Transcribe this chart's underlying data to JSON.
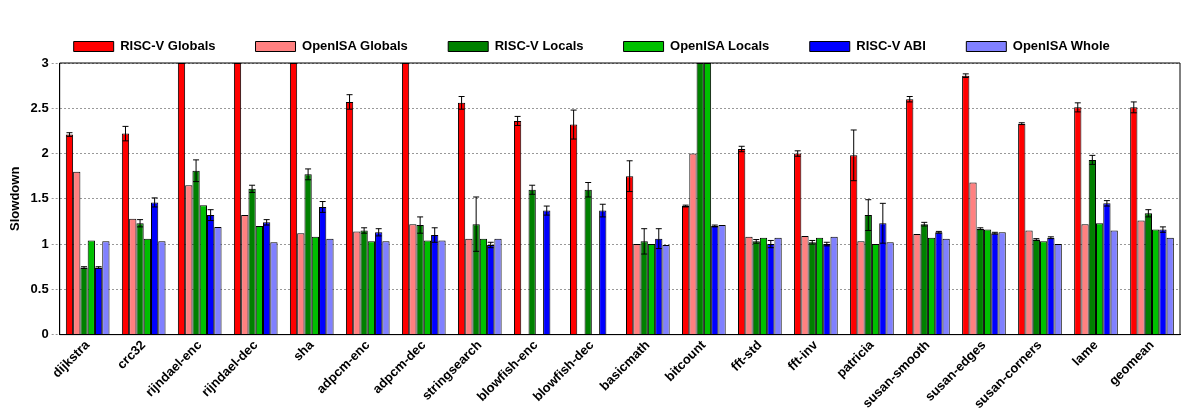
{
  "chart_data": {
    "type": "bar",
    "ylabel": "Slowdown",
    "categories": [
      "dijkstra",
      "crc32",
      "rijndael-enc",
      "rijndael-dec",
      "sha",
      "adpcm-enc",
      "adpcm-dec",
      "stringsearch",
      "blowfish-enc",
      "blowfish-dec",
      "basicmath",
      "bitcount",
      "fft-std",
      "fft-inv",
      "patricia",
      "susan-smooth",
      "susan-edges",
      "susan-corners",
      "lame",
      "geomean"
    ],
    "series": [
      {
        "name": "RISC-V Globals",
        "color": "#ff0000",
        "values": [
          2.21,
          2.22,
          3,
          3,
          3,
          2.57,
          3,
          2.56,
          2.36,
          2.32,
          1.75,
          1.42,
          2.05,
          2.0,
          1.98,
          2.6,
          2.86,
          2.33,
          2.51,
          2.51
        ],
        "errors": [
          0.02,
          0.08,
          null,
          null,
          null,
          0.08,
          null,
          0.07,
          0.05,
          0.16,
          0.17,
          0.01,
          0.03,
          0.03,
          0.28,
          0.03,
          0.02,
          0.01,
          0.05,
          0.06
        ]
      },
      {
        "name": "OpenISA Globals",
        "color": "#ff8080",
        "values": [
          1.8,
          1.28,
          1.65,
          1.32,
          1.12,
          1.14,
          1.22,
          1.06,
          null,
          null,
          1.0,
          2.0,
          1.08,
          1.09,
          1.03,
          1.11,
          1.68,
          1.15,
          1.22,
          1.26
        ]
      },
      {
        "name": "RISC-V Locals",
        "color": "#008000",
        "values": [
          0.74,
          1.23,
          1.81,
          1.61,
          1.77,
          1.15,
          1.21,
          1.22,
          1.6,
          1.6,
          1.03,
          3,
          1.03,
          1.02,
          1.32,
          1.22,
          1.17,
          1.05,
          1.93,
          1.34
        ],
        "errors": [
          0.01,
          0.04,
          0.12,
          0.04,
          0.06,
          0.03,
          0.09,
          0.3,
          0.05,
          0.08,
          0.14,
          null,
          0.02,
          0.02,
          0.17,
          0.02,
          0.01,
          0.01,
          0.05,
          0.04
        ]
      },
      {
        "name": "OpenISA Locals",
        "color": "#00c000",
        "values": [
          1.04,
          1.06,
          1.43,
          1.2,
          1.08,
          1.03,
          1.04,
          1.06,
          null,
          null,
          1.0,
          3,
          1.07,
          1.07,
          1.0,
          1.07,
          1.16,
          1.03,
          1.23,
          1.16
        ]
      },
      {
        "name": "RISC-V ABI",
        "color": "#0000ff",
        "values": [
          0.74,
          1.46,
          1.32,
          1.24,
          1.41,
          1.13,
          1.1,
          0.99,
          1.37,
          1.37,
          1.06,
          1.2,
          1.0,
          1.0,
          1.23,
          1.13,
          1.12,
          1.07,
          1.45,
          1.16
        ],
        "errors": [
          0.01,
          0.05,
          0.06,
          0.03,
          0.06,
          0.04,
          0.08,
          0.03,
          0.05,
          0.07,
          0.11,
          0.01,
          0.04,
          0.02,
          0.22,
          0.01,
          0.01,
          0.01,
          0.03,
          0.03
        ]
      },
      {
        "name": "OpenISA Whole",
        "color": "#8080ff",
        "values": [
          1.03,
          1.03,
          1.19,
          1.02,
          1.06,
          1.03,
          1.04,
          1.06,
          null,
          null,
          0.99,
          1.21,
          1.07,
          1.08,
          1.02,
          1.06,
          1.13,
          1.0,
          1.15,
          1.07
        ]
      }
    ],
    "ylim": [
      0,
      3
    ],
    "yticks": [
      0,
      0.5,
      1,
      1.5,
      2,
      2.5,
      3
    ],
    "grid": "y",
    "legend": "top"
  }
}
